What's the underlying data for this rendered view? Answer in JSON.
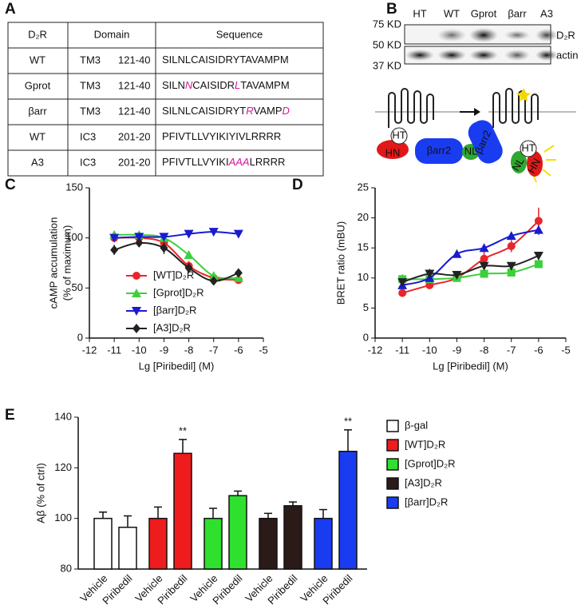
{
  "panel_labels": [
    "A",
    "B",
    "C",
    "D",
    "E"
  ],
  "table": {
    "header": [
      "D₂R",
      "Domain",
      "Sequence"
    ],
    "mutation_color": "#d4189a",
    "rows": [
      {
        "name": "WT",
        "color": "#d42020",
        "domain": "TM3",
        "range": "121-40",
        "sequence": [
          "SILNLCAISIDRYTAVAMPM"
        ]
      },
      {
        "name": "Gprot",
        "color": "#22b522",
        "domain": "TM3",
        "range": "121-40",
        "sequence": [
          "SILN",
          "N",
          "CAISIDR",
          "L",
          "TAVAMPM"
        ]
      },
      {
        "name": "βarr",
        "color": "#2a2ab5",
        "domain": "TM3",
        "range": "121-40",
        "sequence": [
          "SILNLCAISIDRYT",
          "R",
          "VAMP",
          "D"
        ]
      },
      {
        "name": "WT",
        "color": "#d42020",
        "domain": "IC3",
        "range": "201-20",
        "sequence": [
          "PFIVTLLVYIKIYIVLRRRR"
        ]
      },
      {
        "name": "A3",
        "color": "#111111",
        "domain": "IC3",
        "range": "201-20",
        "sequence": [
          "PFIVTLLVYIKI",
          "AAA",
          "LRRRR"
        ]
      }
    ]
  },
  "blot": {
    "lanes": [
      {
        "label": "HT",
        "color": "#888888"
      },
      {
        "label": "WT",
        "color": "#d42020"
      },
      {
        "label": "Gprot",
        "color": "#22b522"
      },
      {
        "label": "βarr",
        "color": "#2a2ab5"
      },
      {
        "label": "A3",
        "color": "#111111"
      }
    ],
    "markers": [
      "75 KD",
      "50 KD",
      "37 KD"
    ],
    "bands": [
      "D₂R",
      "actin"
    ]
  },
  "diagram": {
    "left": [
      "HT",
      "HN",
      "βarr2",
      "NL"
    ],
    "right": [
      "βarr2",
      "HT",
      "NL",
      "HN"
    ]
  },
  "chart_data": [
    {
      "type": "line",
      "xlabel": "Lg [Piribedil] (M)",
      "ylabel": [
        "cAMP accumulation",
        "(% of maximum)"
      ],
      "x": [
        -11,
        -10,
        -9,
        -8,
        -7,
        -6
      ],
      "xlim": [
        -12,
        -5
      ],
      "xticks": [
        -12,
        -11,
        -10,
        -9,
        -8,
        -7,
        -6,
        -5
      ],
      "ylim": [
        0,
        150
      ],
      "yticks": [
        0,
        50,
        100,
        150
      ],
      "series": [
        {
          "name": "[WT]D₂R",
          "color": "#e8262b",
          "marker": "circle",
          "values": [
            100,
            100,
            95,
            72,
            60,
            58
          ],
          "errors": [
            3,
            2,
            4,
            5,
            3,
            3
          ]
        },
        {
          "name": "[Gprot]D₂R",
          "color": "#3cd03c",
          "marker": "triangle",
          "values": [
            103,
            103,
            100,
            83,
            62,
            60
          ],
          "errors": [
            2,
            3,
            3,
            4,
            4,
            3
          ]
        },
        {
          "name": "[βarr]D₂R",
          "color": "#1a1ad0",
          "marker": "triangle-down",
          "values": [
            100,
            101,
            101,
            104,
            106,
            104
          ],
          "errors": [
            3,
            2,
            2,
            2,
            2,
            3
          ]
        },
        {
          "name": "[A3]D₂R",
          "color": "#222222",
          "marker": "diamond",
          "values": [
            88,
            95,
            90,
            70,
            57,
            65
          ],
          "errors": [
            5,
            4,
            6,
            5,
            4,
            2
          ]
        }
      ]
    },
    {
      "type": "line",
      "xlabel": "Lg [Piribedil] (M)",
      "ylabel": [
        "BRET ratio (mBU)"
      ],
      "x": [
        -11,
        -10,
        -9,
        -8,
        -7,
        -6
      ],
      "xlim": [
        -12,
        -5
      ],
      "xticks": [
        -12,
        -11,
        -10,
        -9,
        -8,
        -7,
        -6,
        -5
      ],
      "ylim": [
        0,
        25
      ],
      "yticks": [
        0,
        5,
        10,
        15,
        20,
        25
      ],
      "series": [
        {
          "color": "#e8262b",
          "marker": "circle",
          "values": [
            7.5,
            8.8,
            10,
            13.2,
            15.3,
            19.5
          ],
          "errors": [
            0.5,
            0.4,
            0.4,
            1.2,
            1,
            2.2
          ]
        },
        {
          "color": "#3cd03c",
          "marker": "square",
          "values": [
            9.8,
            9.8,
            10,
            10.7,
            10.9,
            12.3
          ],
          "errors": [
            0.8,
            0.5,
            0.4,
            0.4,
            0.6,
            0.6
          ]
        },
        {
          "color": "#1a1ad0",
          "marker": "triangle",
          "values": [
            8.8,
            10,
            14,
            15,
            17,
            18
          ],
          "errors": [
            0.5,
            0.5,
            0.6,
            0.6,
            0.5,
            0.8
          ]
        },
        {
          "color": "#222222",
          "marker": "triangle-down",
          "values": [
            9.3,
            10.7,
            10.5,
            12,
            12,
            13.7
          ],
          "errors": [
            0.5,
            0.8,
            0.3,
            0.5,
            0.4,
            0.3
          ]
        }
      ]
    },
    {
      "type": "bar",
      "ylabel": [
        "Aβ (% of ctrl)"
      ],
      "categories": [
        "Vehicle",
        "Piribedil"
      ],
      "ylim": [
        80,
        140
      ],
      "yticks": [
        80,
        100,
        120,
        140
      ],
      "series": [
        {
          "name": "β-gal",
          "color": "#ffffff",
          "values": [
            100,
            96.5
          ],
          "errors": [
            2.5,
            4.5
          ],
          "significance": [
            null,
            null
          ]
        },
        {
          "name": "[WT]D₂R",
          "color": "#ee1c1c",
          "values": [
            100,
            125.7
          ],
          "errors": [
            4.5,
            5.5
          ],
          "significance": [
            null,
            "**"
          ]
        },
        {
          "name": "[Gprot]D₂R",
          "color": "#2fe02f",
          "values": [
            100,
            109
          ],
          "errors": [
            4,
            1.8
          ],
          "significance": [
            null,
            null
          ]
        },
        {
          "name": "[A3]D₂R",
          "color": "#2a1a18",
          "values": [
            100,
            105
          ],
          "errors": [
            2,
            1.5
          ],
          "significance": [
            null,
            null
          ]
        },
        {
          "name": "[βarr]D₂R",
          "color": "#1a3cf0",
          "values": [
            100,
            126.5
          ],
          "errors": [
            3.5,
            8.5
          ],
          "significance": [
            null,
            "**"
          ]
        }
      ]
    }
  ]
}
